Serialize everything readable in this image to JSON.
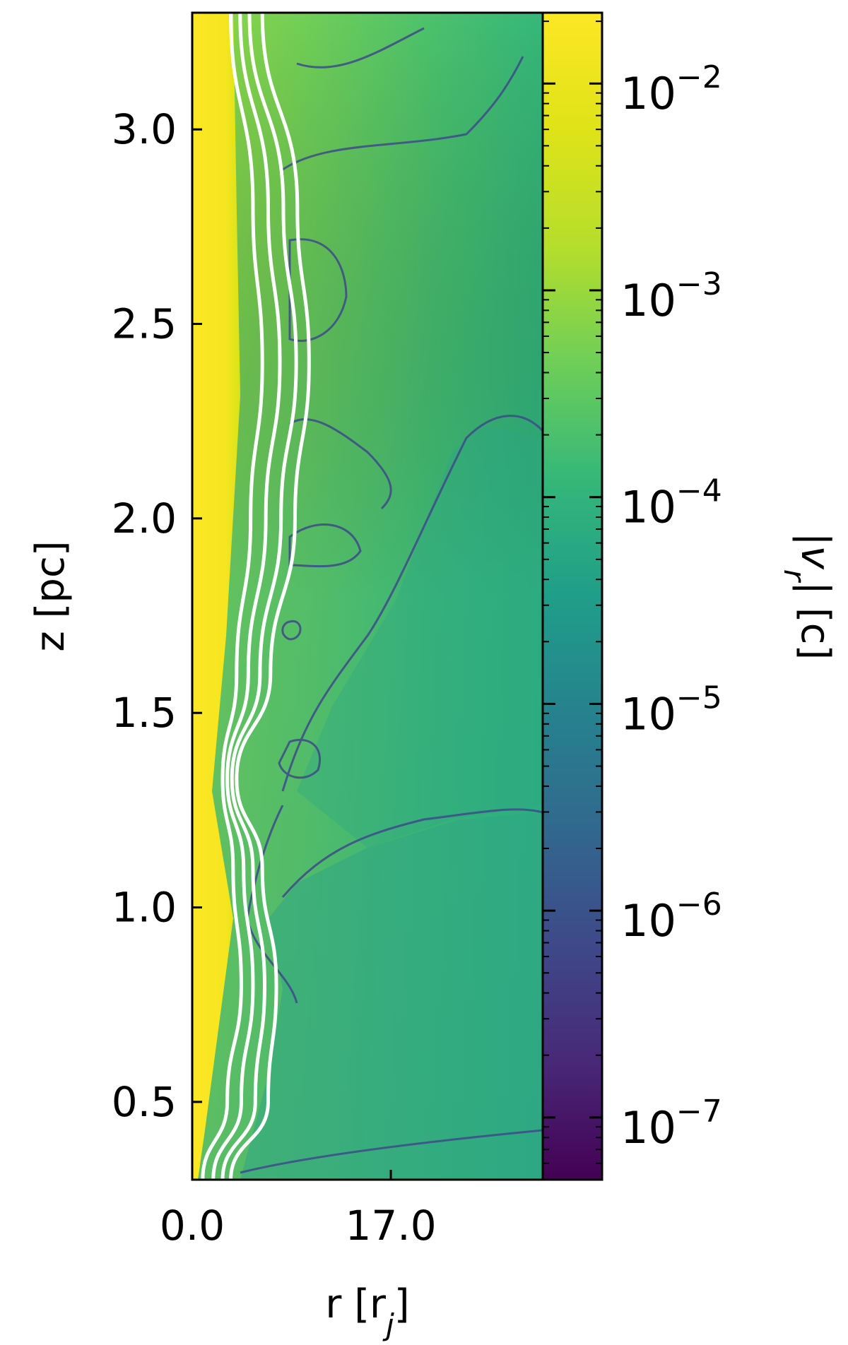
{
  "chart_data": {
    "type": "heatmap",
    "quantity": "|v_r|",
    "xlabel": "r [r_j]",
    "ylabel": "z [pc]",
    "xlim": [
      0.0,
      30.0
    ],
    "ylim": [
      0.3,
      3.3
    ],
    "xticks": [
      {
        "value": 0.0,
        "label": "0.0"
      },
      {
        "value": 17.0,
        "label": "17.0"
      }
    ],
    "yticks": [
      {
        "value": 0.5,
        "label": "0.5"
      },
      {
        "value": 1.0,
        "label": "1.0"
      },
      {
        "value": 1.5,
        "label": "1.5"
      },
      {
        "value": 2.0,
        "label": "2.0"
      },
      {
        "value": 2.5,
        "label": "2.5"
      },
      {
        "value": 3.0,
        "label": "3.0"
      }
    ],
    "colorbar": {
      "label_main": "|v",
      "label_sub": "r",
      "label_tail": "| [c]",
      "scale": "log",
      "range": [
        5e-08,
        0.022
      ],
      "colormap": "viridis",
      "ticks": [
        {
          "value": 1e-07,
          "base": "10",
          "exp": "−7"
        },
        {
          "value": 1e-06,
          "base": "10",
          "exp": "−6"
        },
        {
          "value": 1e-05,
          "base": "10",
          "exp": "−5"
        },
        {
          "value": 0.0001,
          "base": "10",
          "exp": "−4"
        },
        {
          "value": 0.001,
          "base": "10",
          "exp": "−3"
        },
        {
          "value": 0.01,
          "base": "10",
          "exp": "−2"
        }
      ]
    },
    "colors": {
      "jet": "#fde725",
      "background_mid": "#6fc061",
      "shear": "#3e4a89",
      "streamlines": "#ffffff",
      "deep": "#440154"
    },
    "streamlines": [
      {
        "name": "",
        "points": [
          [
            0.9,
            0.3
          ],
          [
            3.0,
            0.5
          ],
          [
            4.2,
            0.8
          ],
          [
            3.5,
            1.1
          ],
          [
            2.6,
            1.33
          ],
          [
            3.8,
            1.6
          ],
          [
            5.0,
            2.0
          ],
          [
            6.0,
            2.4
          ],
          [
            5.2,
            2.8
          ],
          [
            3.3,
            3.3
          ]
        ]
      },
      {
        "name": "",
        "points": [
          [
            1.8,
            0.3
          ],
          [
            4.2,
            0.5
          ],
          [
            5.2,
            0.8
          ],
          [
            4.4,
            1.1
          ],
          [
            3.0,
            1.33
          ],
          [
            4.8,
            1.6
          ],
          [
            6.3,
            2.0
          ],
          [
            7.5,
            2.4
          ],
          [
            6.5,
            2.8
          ],
          [
            4.1,
            3.3
          ]
        ]
      },
      {
        "name": "",
        "points": [
          [
            2.6,
            0.3
          ],
          [
            5.4,
            0.5
          ],
          [
            6.2,
            0.8
          ],
          [
            5.2,
            1.1
          ],
          [
            3.4,
            1.33
          ],
          [
            5.8,
            1.6
          ],
          [
            7.6,
            2.0
          ],
          [
            8.9,
            2.4
          ],
          [
            7.8,
            2.8
          ],
          [
            4.9,
            3.3
          ]
        ]
      },
      {
        "name": "",
        "points": [
          [
            3.3,
            0.3
          ],
          [
            6.5,
            0.5
          ],
          [
            7.2,
            0.8
          ],
          [
            6.0,
            1.1
          ],
          [
            3.8,
            1.33
          ],
          [
            6.7,
            1.6
          ],
          [
            8.8,
            2.0
          ],
          [
            10.0,
            2.4
          ],
          [
            9.0,
            2.8
          ],
          [
            6.0,
            3.3
          ]
        ]
      }
    ]
  }
}
